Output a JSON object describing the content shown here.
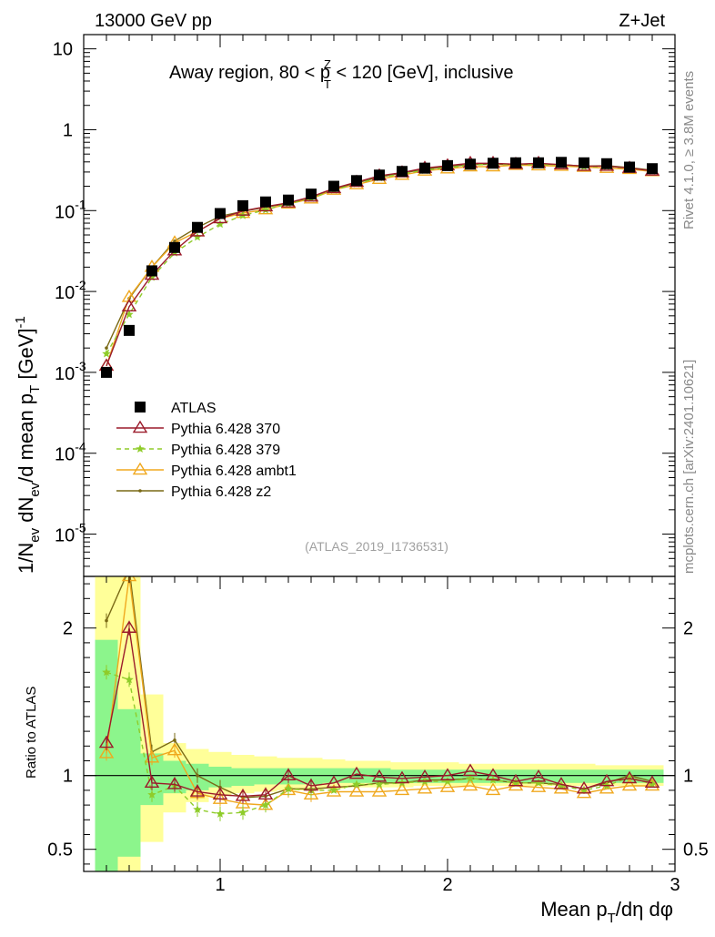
{
  "header": {
    "left": "13000 GeV pp",
    "right": "Z+Jet",
    "side_rivet": "Rivet 4.1.0, ≥ 3.8M events",
    "side_mcplots": "mcplots.cern.ch [arXiv:2401.10621]"
  },
  "colors": {
    "atlas": "#000000",
    "p370": "#9b1b2b",
    "p379": "#8fcc2a",
    "ambt1": "#f0a81e",
    "z2": "#7a6a16",
    "band_green": "#8cf58c",
    "band_yellow": "#ffff99"
  },
  "chart_data": [
    {
      "type": "line",
      "panel": "main",
      "title_pre": "Away region, 80 < p",
      "title_sup": "Z",
      "title_sub": "T",
      "title_post": " < 120 [GeV], inclusive",
      "ylabel": "1/N_ev dN_ev/d mean p_T [GeV]^-1",
      "ylabel_parts": [
        "1/N",
        "ev",
        " dN",
        "ev",
        "/d mean p",
        "T",
        " [GeV]",
        "-1"
      ],
      "yscale": "log",
      "ylim": [
        3e-06,
        15
      ],
      "xlim": [
        0.4,
        3.0
      ],
      "yticks": [
        {
          "exp": "-5",
          "v": 1e-05
        },
        {
          "exp": "-4",
          "v": 0.0001
        },
        {
          "exp": "-3",
          "v": 0.001
        },
        {
          "exp": "-2",
          "v": 0.01
        },
        {
          "exp": "-1",
          "v": 0.1
        }
      ],
      "ytick_plain": [
        {
          "label": "1",
          "v": 1
        },
        {
          "label": "10",
          "v": 10
        }
      ],
      "x": [
        0.5,
        0.6,
        0.7,
        0.8,
        0.9,
        1.0,
        1.1,
        1.2,
        1.3,
        1.4,
        1.5,
        1.6,
        1.7,
        1.8,
        1.9,
        2.0,
        2.1,
        2.2,
        2.3,
        2.4,
        2.5,
        2.6,
        2.7,
        2.8,
        2.9
      ],
      "legend_position": "lower-left",
      "watermark": "(ATLAS_2019_I1736531)",
      "series": [
        {
          "key": "atlas",
          "name": "ATLAS",
          "marker": "square",
          "values": [
            0.001,
            0.0033,
            0.018,
            0.035,
            0.062,
            0.092,
            0.115,
            0.128,
            0.135,
            0.16,
            0.2,
            0.235,
            0.275,
            0.305,
            0.335,
            0.36,
            0.375,
            0.385,
            0.39,
            0.39,
            0.395,
            0.39,
            0.38,
            0.345,
            0.33
          ]
        },
        {
          "key": "p370",
          "name": "Pythia 6.428 370",
          "marker": "triangle",
          "values": [
            0.0012,
            0.0065,
            0.016,
            0.032,
            0.055,
            0.08,
            0.099,
            0.112,
            0.125,
            0.148,
            0.188,
            0.225,
            0.27,
            0.295,
            0.335,
            0.36,
            0.385,
            0.385,
            0.375,
            0.385,
            0.37,
            0.355,
            0.355,
            0.335,
            0.31
          ]
        },
        {
          "key": "p379",
          "name": "Pythia 6.428 379",
          "marker": "star",
          "dashed": true,
          "values": [
            0.0017,
            0.0052,
            0.015,
            0.03,
            0.047,
            0.068,
            0.087,
            0.102,
            0.122,
            0.142,
            0.18,
            0.215,
            0.255,
            0.285,
            0.315,
            0.34,
            0.365,
            0.375,
            0.37,
            0.37,
            0.37,
            0.35,
            0.35,
            0.335,
            0.31
          ]
        },
        {
          "key": "ambt1",
          "name": "Pythia 6.428 ambt1",
          "marker": "triangle",
          "values": [
            0.0012,
            0.0085,
            0.02,
            0.04,
            0.055,
            0.08,
            0.093,
            0.103,
            0.121,
            0.14,
            0.18,
            0.21,
            0.245,
            0.275,
            0.31,
            0.33,
            0.35,
            0.35,
            0.365,
            0.36,
            0.355,
            0.345,
            0.335,
            0.325,
            0.305
          ]
        },
        {
          "key": "z2",
          "name": "Pythia 6.428 z2",
          "marker": "dot",
          "values": [
            0.002,
            0.0082,
            0.02,
            0.042,
            0.062,
            0.085,
            0.098,
            0.11,
            0.123,
            0.145,
            0.185,
            0.22,
            0.26,
            0.29,
            0.325,
            0.35,
            0.37,
            0.375,
            0.37,
            0.375,
            0.37,
            0.355,
            0.36,
            0.34,
            0.315
          ]
        }
      ]
    },
    {
      "type": "line",
      "panel": "ratio",
      "ylabel": "Ratio to ATLAS",
      "xlabel": "Mean p_T/dη dφ",
      "xlabel_parts": [
        "Mean p",
        "T",
        "/dη dφ"
      ],
      "ylim": [
        0.35,
        2.35
      ],
      "xlim": [
        0.4,
        3.0
      ],
      "yticks": [
        {
          "label": "0.5",
          "v": 0.5
        },
        {
          "label": "1",
          "v": 1
        },
        {
          "label": "2",
          "v": 2
        }
      ],
      "xticks": [
        {
          "label": "1",
          "v": 1
        },
        {
          "label": "2",
          "v": 2
        },
        {
          "label": "3",
          "v": 3
        }
      ],
      "band_edges": [
        0.45,
        0.55,
        0.65,
        0.75,
        0.85,
        0.95,
        1.05,
        1.15,
        1.25,
        1.35,
        1.45,
        1.55,
        1.65,
        1.75,
        1.85,
        1.95,
        2.05,
        2.15,
        2.25,
        2.35,
        2.45,
        2.55,
        2.65,
        2.75,
        2.85,
        2.95
      ],
      "band_yellow": [
        [
          0.35,
          2.35
        ],
        [
          0.35,
          2.35
        ],
        [
          0.55,
          1.55
        ],
        [
          0.75,
          1.22
        ],
        [
          0.82,
          1.18
        ],
        [
          0.86,
          1.16
        ],
        [
          0.88,
          1.14
        ],
        [
          0.89,
          1.13
        ],
        [
          0.9,
          1.12
        ],
        [
          0.9,
          1.12
        ],
        [
          0.91,
          1.11
        ],
        [
          0.92,
          1.1
        ],
        [
          0.92,
          1.1
        ],
        [
          0.92,
          1.09
        ],
        [
          0.93,
          1.09
        ],
        [
          0.93,
          1.09
        ],
        [
          0.93,
          1.08
        ],
        [
          0.93,
          1.08
        ],
        [
          0.93,
          1.08
        ],
        [
          0.93,
          1.08
        ],
        [
          0.93,
          1.08
        ],
        [
          0.93,
          1.08
        ],
        [
          0.93,
          1.07
        ],
        [
          0.93,
          1.07
        ],
        [
          0.93,
          1.07
        ]
      ],
      "band_green": [
        [
          0.35,
          1.92
        ],
        [
          0.45,
          1.45
        ],
        [
          0.8,
          1.15
        ],
        [
          0.88,
          1.1
        ],
        [
          0.9,
          1.08
        ],
        [
          0.92,
          1.06
        ],
        [
          0.93,
          1.05
        ],
        [
          0.94,
          1.05
        ],
        [
          0.94,
          1.05
        ],
        [
          0.94,
          1.05
        ],
        [
          0.95,
          1.05
        ],
        [
          0.95,
          1.05
        ],
        [
          0.95,
          1.05
        ],
        [
          0.95,
          1.04
        ],
        [
          0.95,
          1.04
        ],
        [
          0.95,
          1.04
        ],
        [
          0.95,
          1.04
        ],
        [
          0.95,
          1.04
        ],
        [
          0.95,
          1.04
        ],
        [
          0.95,
          1.04
        ],
        [
          0.95,
          1.04
        ],
        [
          0.95,
          1.04
        ],
        [
          0.95,
          1.04
        ],
        [
          0.95,
          1.04
        ],
        [
          0.95,
          1.04
        ]
      ],
      "series": [
        {
          "key": "p370",
          "name": "Pythia 6.428 370",
          "marker": "triangle",
          "values": [
            1.22,
            2.0,
            0.95,
            0.94,
            0.89,
            0.87,
            0.86,
            0.87,
            1.0,
            0.93,
            0.95,
            1.01,
            0.99,
            0.98,
            0.99,
            1.0,
            1.03,
            1.0,
            0.96,
            0.99,
            0.94,
            0.91,
            0.96,
            0.98,
            0.95
          ]
        },
        {
          "key": "p379",
          "name": "Pythia 6.428 379",
          "marker": "star",
          "dashed": true,
          "values": [
            1.7,
            1.65,
            0.87,
            0.93,
            0.77,
            0.74,
            0.75,
            0.8,
            0.91,
            0.9,
            0.9,
            0.94,
            0.94,
            0.95,
            0.96,
            0.96,
            0.98,
            0.97,
            0.95,
            0.95,
            0.93,
            0.9,
            0.93,
            0.99,
            0.94
          ]
        },
        {
          "key": "ambt1",
          "name": "Pythia 6.428 ambt1",
          "marker": "triangle",
          "values": [
            1.15,
            2.35,
            1.12,
            1.17,
            0.88,
            0.84,
            0.81,
            0.8,
            0.9,
            0.87,
            0.89,
            0.89,
            0.89,
            0.9,
            0.91,
            0.92,
            0.93,
            0.9,
            0.93,
            0.92,
            0.91,
            0.88,
            0.91,
            0.93,
            0.93
          ]
        },
        {
          "key": "z2",
          "name": "Pythia 6.428 z2",
          "marker": "dot",
          "values": [
            2.05,
            2.4,
            1.16,
            1.24,
            1.0,
            0.92,
            0.85,
            0.86,
            0.91,
            0.91,
            0.92,
            0.93,
            0.95,
            0.95,
            0.97,
            0.97,
            0.98,
            0.97,
            0.95,
            0.95,
            0.94,
            0.91,
            0.95,
            1.0,
            0.96
          ]
        }
      ]
    }
  ]
}
